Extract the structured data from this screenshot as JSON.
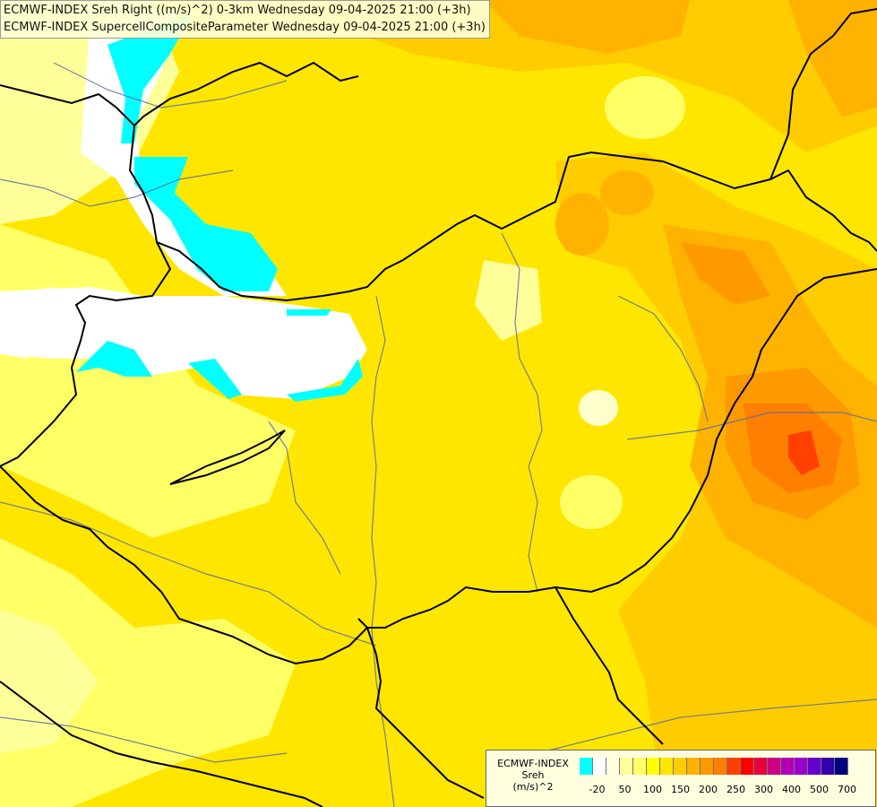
{
  "title": {
    "line1": "ECMWF-INDEX Sreh Right ((m/s)^2) 0-3km Wednesday 09-04-2025 21:00 (+3h)",
    "line2": "ECMWF-INDEX SupercellCompositeParameter Wednesday 09-04-2025 21:00 (+3h)"
  },
  "legend": {
    "line1": "ECMWF-INDEX",
    "line2": "Sreh",
    "line3": "(m/s)^2",
    "colors": [
      "#00ffff",
      "#ffffff",
      "#ffffe0",
      "#ffff99",
      "#ffff66",
      "#ffff00",
      "#ffe600",
      "#ffcc00",
      "#ffb300",
      "#ff9900",
      "#ff7f00",
      "#ff4000",
      "#ff0000",
      "#e60040",
      "#cc0080",
      "#b300b3",
      "#9900cc",
      "#6600cc",
      "#3300aa",
      "#000080"
    ],
    "ticks": [
      {
        "label": "-20",
        "idx": 1
      },
      {
        "label": "50",
        "idx": 3
      },
      {
        "label": "100",
        "idx": 5
      },
      {
        "label": "150",
        "idx": 7
      },
      {
        "label": "200",
        "idx": 9
      },
      {
        "label": "250",
        "idx": 11
      },
      {
        "label": "300",
        "idx": 13
      },
      {
        "label": "400",
        "idx": 15
      },
      {
        "label": "500",
        "idx": 17
      },
      {
        "label": "700",
        "idx": 19
      }
    ]
  },
  "map": {
    "background_color": "#ffe600",
    "border_color": "#000000",
    "river_color": "#5a6fa0"
  }
}
